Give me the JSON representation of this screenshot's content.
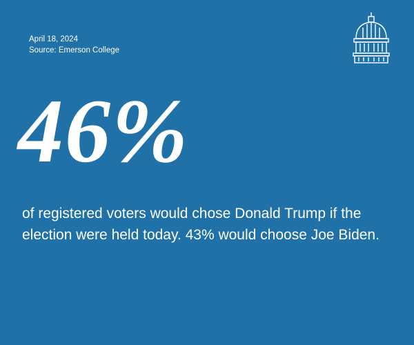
{
  "date": "April 18, 2024",
  "source": "Source: Emerson College",
  "headline": "46%",
  "body": "of registered voters would chose Donald Trump if the election were held today. 43% would choose Joe Biden."
}
